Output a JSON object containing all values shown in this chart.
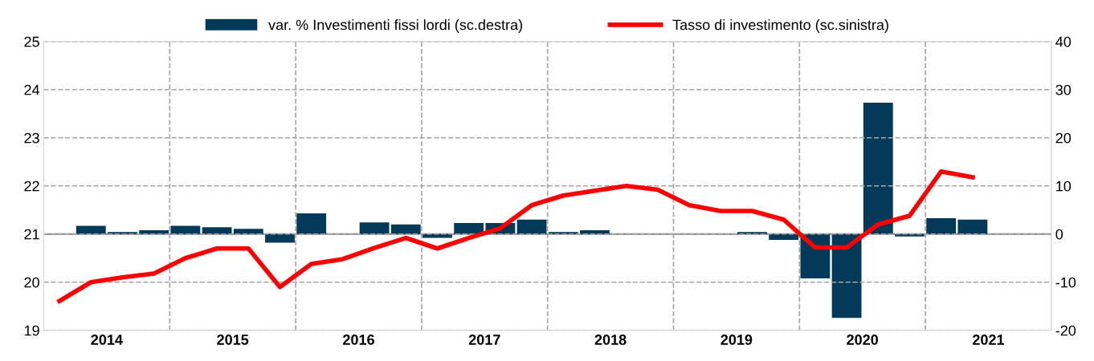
{
  "chart_data": {
    "type": "bar",
    "x": [
      2014.125,
      2014.375,
      2014.625,
      2014.875,
      2015.125,
      2015.375,
      2015.625,
      2015.875,
      2016.125,
      2016.375,
      2016.625,
      2016.875,
      2017.125,
      2017.375,
      2017.625,
      2017.875,
      2018.125,
      2018.375,
      2018.625,
      2018.875,
      2019.125,
      2019.375,
      2019.625,
      2019.875,
      2020.125,
      2020.375,
      2020.625,
      2020.875,
      2021.125,
      2021.375
    ],
    "series": [
      {
        "name": "var. % Investimenti fissi lordi (sc.destra)",
        "axis": "y2",
        "color": "#033a5a",
        "values": [
          null,
          1.7,
          0.4,
          0.8,
          1.7,
          1.4,
          1.1,
          -1.8,
          4.3,
          0,
          2.4,
          2.0,
          -0.8,
          2.3,
          2.3,
          3.0,
          0.4,
          0.8,
          0,
          0,
          0,
          0,
          0.4,
          -1.2,
          -9.2,
          -17.4,
          27.3,
          -0.5,
          3.3,
          3.0
        ]
      },
      {
        "name": "Tasso di investimento (sc.sinistra)",
        "type": "line",
        "color": "#ff0000",
        "values": [
          19.61,
          20.0,
          20.1,
          20.18,
          20.5,
          20.7,
          20.7,
          19.9,
          20.38,
          20.48,
          20.71,
          20.92,
          20.7,
          20.92,
          21.12,
          21.6,
          21.8,
          21.9,
          22.0,
          21.92,
          21.6,
          21.48,
          21.48,
          21.3,
          20.72,
          20.72,
          21.2,
          21.38,
          22.3,
          22.18
        ]
      }
    ],
    "xlim": [
      2014,
      2022
    ],
    "xticks": [
      {
        "value": 2014.5,
        "label": "2014"
      },
      {
        "value": 2015,
        "label": null
      },
      {
        "value": 2015.5,
        "label": "2015"
      },
      {
        "value": 2016,
        "label": null
      },
      {
        "value": 2016.5,
        "label": "2016"
      },
      {
        "value": 2017,
        "label": null
      },
      {
        "value": 2017.5,
        "label": "2017"
      },
      {
        "value": 2018,
        "label": null
      },
      {
        "value": 2018.5,
        "label": "2018"
      },
      {
        "value": 2019,
        "label": null
      },
      {
        "value": 2019.5,
        "label": "2019"
      },
      {
        "value": 2020,
        "label": null
      },
      {
        "value": 2020.5,
        "label": "2020"
      },
      {
        "value": 2021,
        "label": null
      },
      {
        "value": 2021.5,
        "label": "2021"
      }
    ],
    "ylim": [
      19,
      25
    ],
    "yticks": [
      19,
      20,
      21,
      22,
      23,
      24,
      25
    ],
    "y2lim": [
      -20,
      40
    ],
    "y2ticks": [
      -20,
      -10,
      0,
      10,
      20,
      30,
      40
    ],
    "ref_lines": [
      {
        "axis": "y2",
        "value": 0,
        "color": "#808080",
        "line_style": "solid"
      }
    ],
    "grid": true,
    "legend": "top",
    "line_style": "solid"
  }
}
